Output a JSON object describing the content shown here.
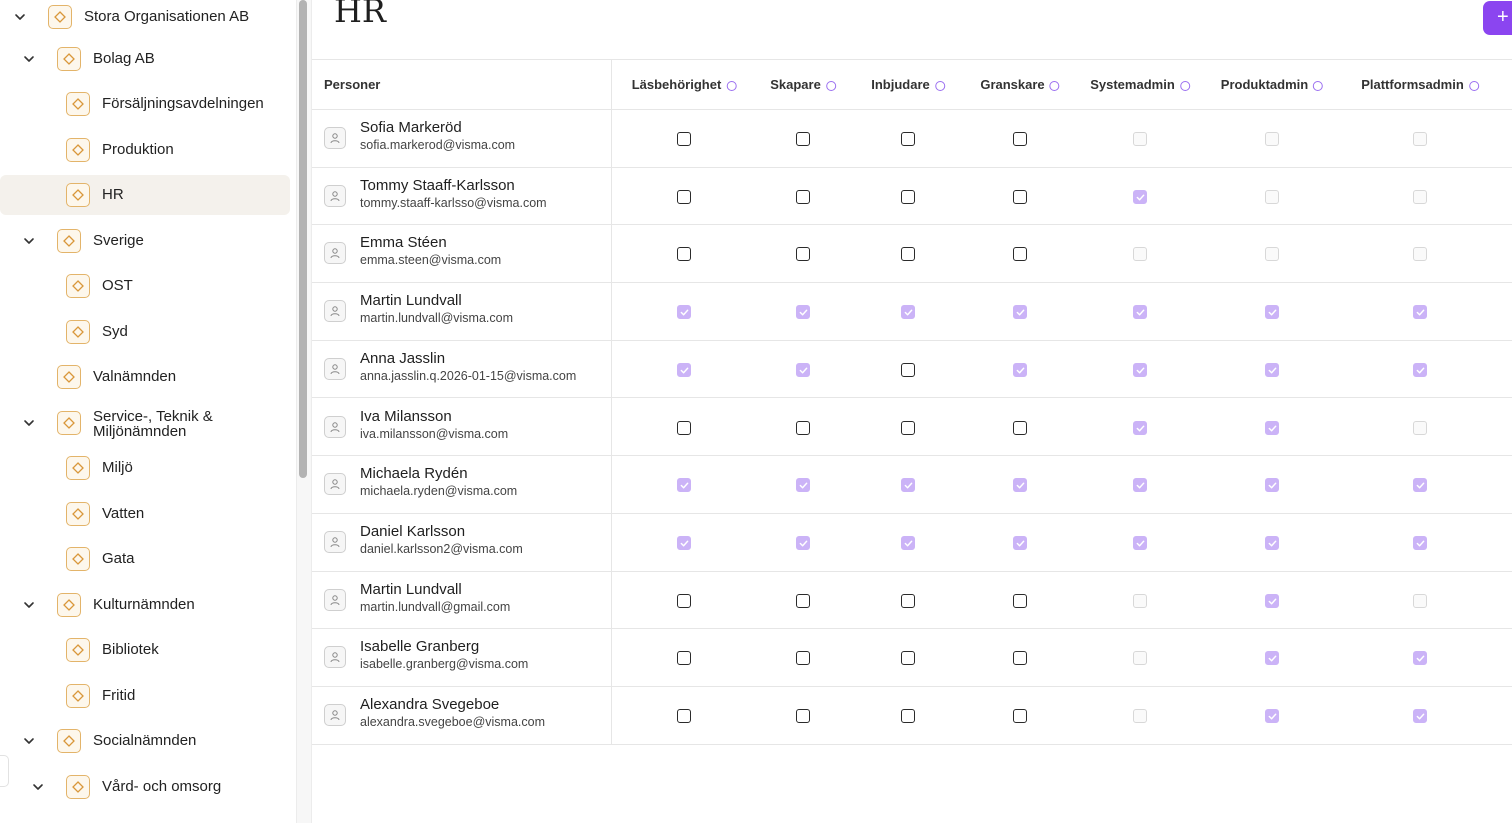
{
  "page": {
    "title": "HR",
    "add_button": "+"
  },
  "sidebar": {
    "items": [
      {
        "label": "Stora Organisationen AB",
        "indent": 0,
        "expandable": true,
        "selected": false
      },
      {
        "label": "Bolag AB",
        "indent": 1,
        "expandable": true,
        "selected": false
      },
      {
        "label": "Försäljningsavdelningen",
        "indent": 2,
        "expandable": false,
        "selected": false
      },
      {
        "label": "Produktion",
        "indent": 2,
        "expandable": false,
        "selected": false
      },
      {
        "label": "HR",
        "indent": 2,
        "expandable": false,
        "selected": true
      },
      {
        "label": "Sverige",
        "indent": 1,
        "expandable": true,
        "selected": false
      },
      {
        "label": "OST",
        "indent": 2,
        "expandable": false,
        "selected": false
      },
      {
        "label": "Syd",
        "indent": 2,
        "expandable": false,
        "selected": false
      },
      {
        "label": "Valnämnden",
        "indent": 1,
        "expandable": false,
        "selected": false
      },
      {
        "label": "Service-, Teknik &",
        "label2": "Miljönämnden",
        "indent": 1,
        "expandable": true,
        "selected": false
      },
      {
        "label": "Miljö",
        "indent": 2,
        "expandable": false,
        "selected": false
      },
      {
        "label": "Vatten",
        "indent": 2,
        "expandable": false,
        "selected": false
      },
      {
        "label": "Gata",
        "indent": 2,
        "expandable": false,
        "selected": false
      },
      {
        "label": "Kulturnämnden",
        "indent": 1,
        "expandable": true,
        "selected": false
      },
      {
        "label": "Bibliotek",
        "indent": 2,
        "expandable": false,
        "selected": false
      },
      {
        "label": "Fritid",
        "indent": 2,
        "expandable": false,
        "selected": false
      },
      {
        "label": "Socialnämnden",
        "indent": 1,
        "expandable": true,
        "selected": false
      },
      {
        "label": "Vård- och omsorg",
        "indent": 2,
        "expandable": true,
        "selected": false
      }
    ]
  },
  "table": {
    "persons_header": "Personer",
    "columns": [
      "Läsbehörighet",
      "Skapare",
      "Inbjudare",
      "Granskare",
      "Systemadmin",
      "Produktadmin",
      "Plattformsadmin"
    ],
    "rows": [
      {
        "name": "Sofia Markeröd",
        "email": "sofia.markerod@visma.com",
        "perms": [
          "empty",
          "empty",
          "empty",
          "empty",
          "disabled",
          "disabled",
          "disabled"
        ]
      },
      {
        "name": "Tommy Staaff-Karlsson",
        "email": "tommy.staaff-karlsso@visma.com",
        "perms": [
          "empty",
          "empty",
          "empty",
          "empty",
          "checked",
          "disabled",
          "disabled"
        ]
      },
      {
        "name": "Emma Stéen",
        "email": "emma.steen@visma.com",
        "perms": [
          "empty",
          "empty",
          "empty",
          "empty",
          "disabled",
          "disabled",
          "disabled"
        ]
      },
      {
        "name": "Martin Lundvall",
        "email": "martin.lundvall@visma.com",
        "perms": [
          "checked",
          "checked",
          "checked",
          "checked",
          "checked",
          "checked",
          "checked"
        ]
      },
      {
        "name": "Anna Jasslin",
        "email": "anna.jasslin.q.2026-01-15@visma.com",
        "perms": [
          "checked",
          "checked",
          "empty",
          "checked",
          "checked",
          "checked",
          "checked"
        ]
      },
      {
        "name": "Iva Milansson",
        "email": "iva.milansson@visma.com",
        "perms": [
          "empty",
          "empty",
          "empty",
          "empty",
          "checked",
          "checked",
          "disabled"
        ]
      },
      {
        "name": "Michaela Rydén",
        "email": "michaela.ryden@visma.com",
        "perms": [
          "checked",
          "checked",
          "checked",
          "checked",
          "checked",
          "checked",
          "checked"
        ]
      },
      {
        "name": "Daniel Karlsson",
        "email": "daniel.karlsson2@visma.com",
        "perms": [
          "checked",
          "checked",
          "checked",
          "checked",
          "checked",
          "checked",
          "checked"
        ]
      },
      {
        "name": "Martin Lundvall",
        "email": "martin.lundvall@gmail.com",
        "perms": [
          "empty",
          "empty",
          "empty",
          "empty",
          "disabled",
          "checked",
          "disabled"
        ]
      },
      {
        "name": "Isabelle Granberg",
        "email": "isabelle.granberg@visma.com",
        "perms": [
          "empty",
          "empty",
          "empty",
          "empty",
          "disabled",
          "checked",
          "checked"
        ]
      },
      {
        "name": "Alexandra Svegeboe",
        "email": "alexandra.svegeboe@visma.com",
        "perms": [
          "empty",
          "empty",
          "empty",
          "empty",
          "disabled",
          "checked",
          "checked"
        ]
      }
    ]
  },
  "colors": {
    "accent": "#8b45f0",
    "checked_fill": "#cbb3f7",
    "node_border": "#e3b46a",
    "selected_bg": "#f4f1ec"
  }
}
